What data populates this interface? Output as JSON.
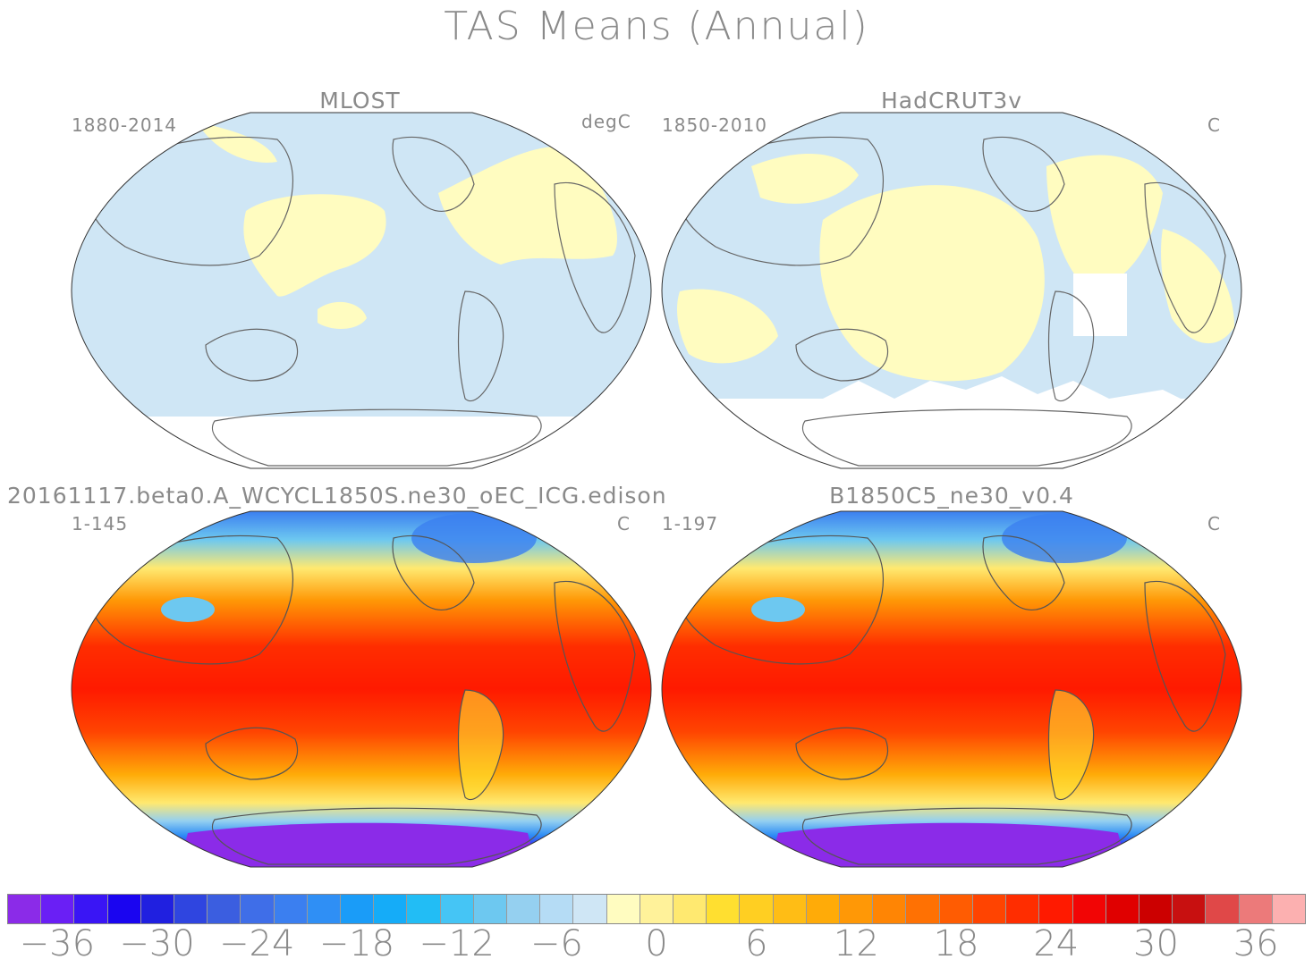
{
  "title": "TAS Means (Annual)",
  "panels": [
    {
      "name": "MLOST",
      "period": "1880-2014",
      "units": "degC"
    },
    {
      "name": "HadCRUT3v",
      "period": "1850-2010",
      "units": "C"
    },
    {
      "name": "20161117.beta0.A_WCYCL1850S.ne30_oEC_ICG.edison",
      "period": "1-145",
      "units": "C"
    },
    {
      "name": "B1850C5_ne30_v0.4",
      "period": "1-197",
      "units": "C"
    }
  ],
  "colorbar": {
    "colors": [
      "#8b2be8",
      "#6a1ff5",
      "#3a15f5",
      "#1a05f0",
      "#2020e0",
      "#2f45e0",
      "#3b5ee0",
      "#3f6ee8",
      "#3b7ff0",
      "#2f8ff5",
      "#1a9cf8",
      "#15acf8",
      "#22bdf5",
      "#45c5f5",
      "#6dc8f0",
      "#95d0f0",
      "#b5dcf5",
      "#cfe6f5",
      "#fffcc0",
      "#fff29a",
      "#ffe970",
      "#ffdf30",
      "#ffcf22",
      "#ffbd15",
      "#ffab08",
      "#ff9806",
      "#ff8504",
      "#ff7103",
      "#ff5c02",
      "#ff4401",
      "#ff2d00",
      "#ff1a00",
      "#f20505",
      "#e00000",
      "#cc0000",
      "#c81010",
      "#e04848",
      "#ec7a7a",
      "#fcb0b0"
    ],
    "ticks": [
      "−36",
      "−30",
      "−24",
      "−18",
      "−12",
      "−6",
      "0",
      "6",
      "12",
      "18",
      "24",
      "30",
      "36"
    ],
    "tick_values": [
      -36,
      -30,
      -24,
      -18,
      -12,
      -6,
      0,
      6,
      12,
      18,
      24,
      30,
      36
    ],
    "min": -39,
    "max": 39
  }
}
